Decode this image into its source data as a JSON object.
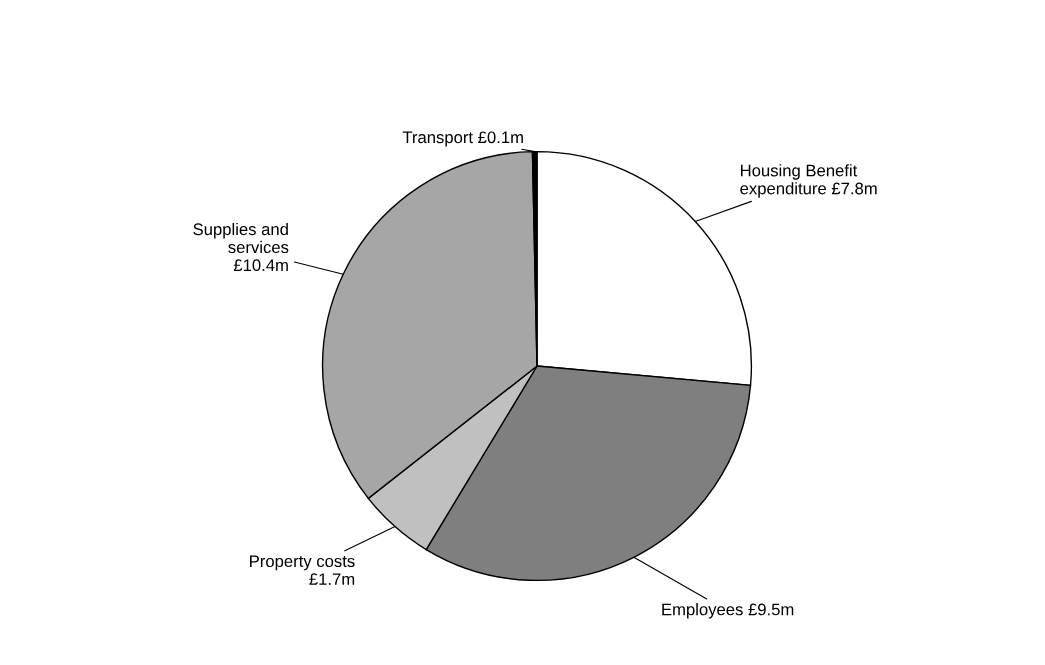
{
  "chart_data": {
    "type": "pie",
    "categories": [
      "Housing Benefit\nexpenditure",
      "Employees",
      "Property costs",
      "Supplies and\nservices",
      "Transport"
    ],
    "values": [
      7.8,
      9.5,
      1.7,
      10.4,
      0.1
    ],
    "value_labels": [
      "£7.8m",
      "£9.5m",
      "£1.7m",
      "£10.4m",
      "£0.1m"
    ],
    "colors": [
      "#ffffff",
      "#7f7f7f",
      "#c0c0c0",
      "#a6a6a6",
      "#000000"
    ]
  }
}
